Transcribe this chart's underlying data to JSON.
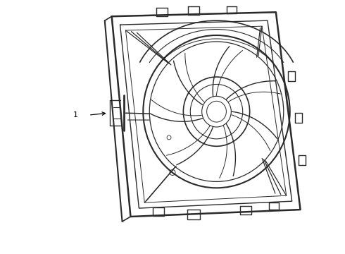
{
  "background_color": "#ffffff",
  "line_color": "#2a2a2a",
  "label_color": "#000000",
  "line_width": 1.0,
  "figsize": [
    4.9,
    3.6
  ],
  "dpi": 100,
  "label_text": "1",
  "img_path": null
}
